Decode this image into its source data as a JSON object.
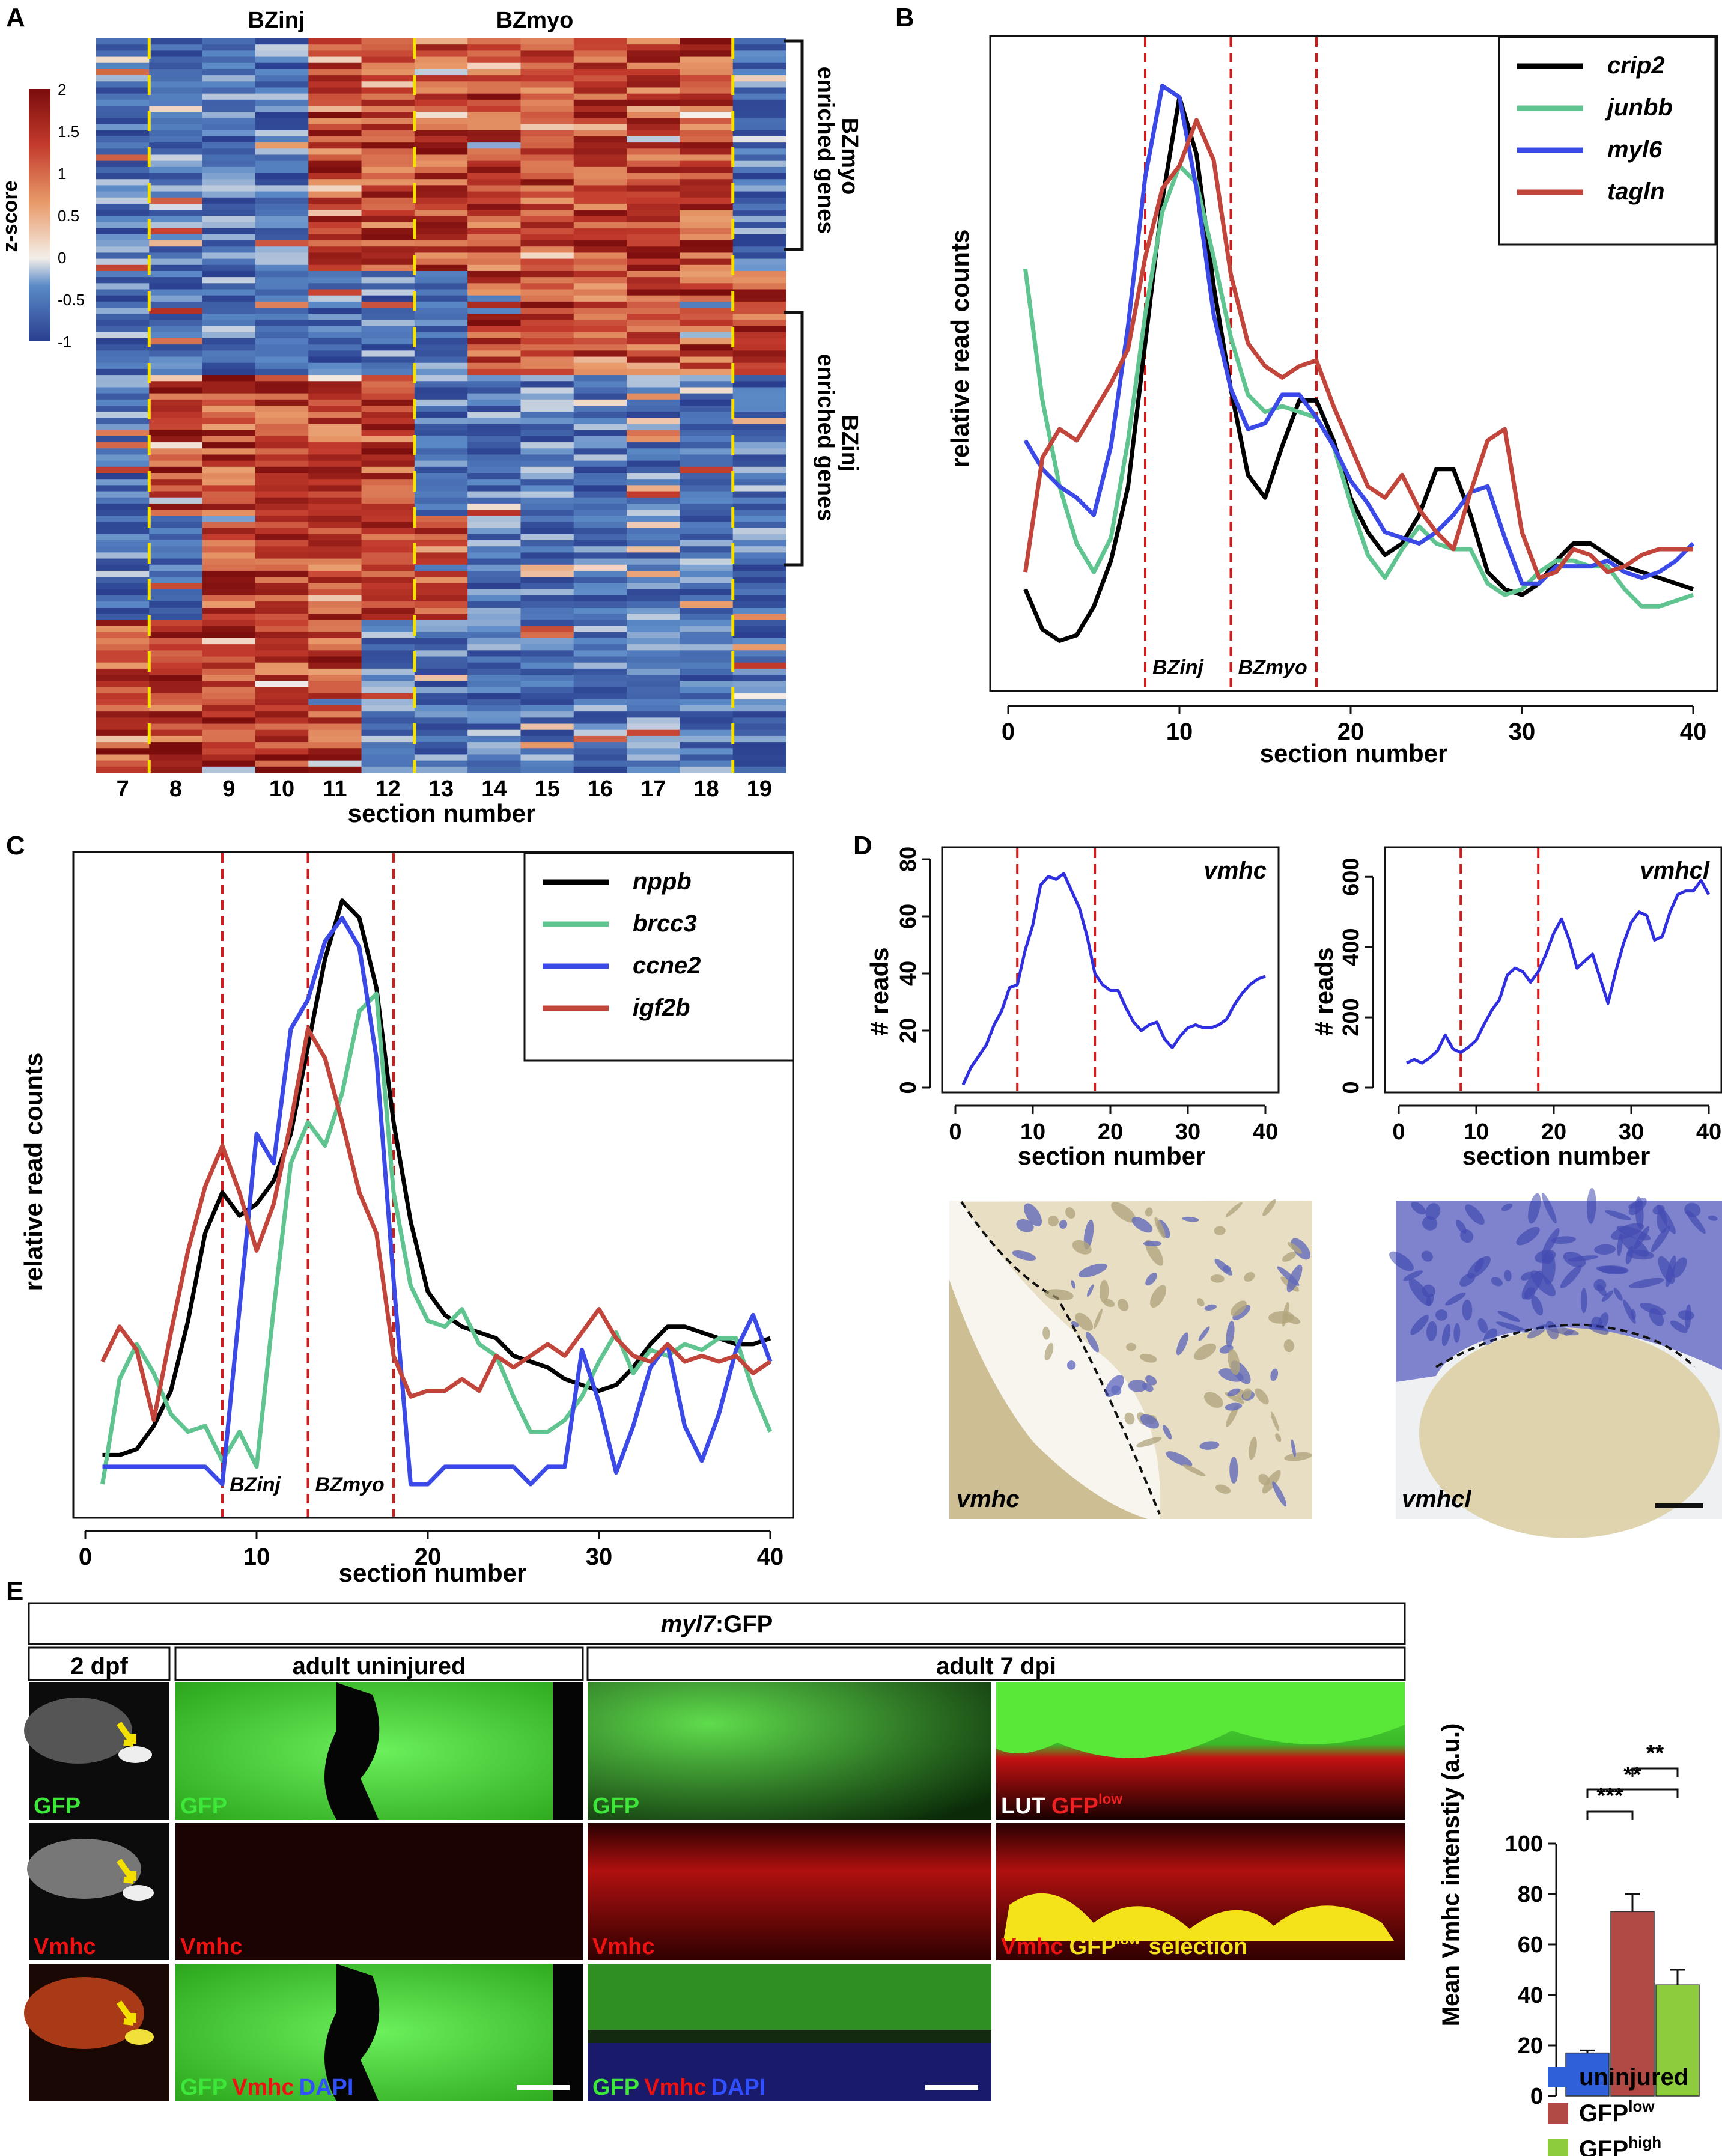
{
  "panelA": {
    "letter": "A",
    "header_left": "BZinj",
    "header_right": "BZmyo",
    "colorbar_label": "z-score",
    "colorbar_ticks": [
      "2",
      "1.5",
      "1",
      "0.5",
      "0",
      "-0.5",
      "-1"
    ],
    "bracket_top": [
      "BZmyo",
      "enriched genes"
    ],
    "bracket_bottom": [
      "BZinj",
      "enriched genes"
    ],
    "section_numbers": [
      "7",
      "8",
      "9",
      "10",
      "11",
      "12",
      "13",
      "14",
      "15",
      "16",
      "17",
      "18",
      "19"
    ],
    "xlabel": "section number"
  },
  "panelB": {
    "letter": "B",
    "ylabel": "relative read counts",
    "xlabel": "section number",
    "xticks": [
      "0",
      "10",
      "20",
      "30",
      "40"
    ],
    "zone_labels": [
      "BZinj",
      "BZmyo"
    ]
  },
  "panelC": {
    "letter": "C",
    "ylabel": "relative read counts",
    "xlabel": "section number",
    "xticks": [
      "0",
      "10",
      "20",
      "30",
      "40"
    ],
    "zone_labels": [
      "BZinj",
      "BZmyo"
    ]
  },
  "panelD": {
    "letter": "D",
    "ylabel": "# reads",
    "xlabel": "section number",
    "xticks": [
      "0",
      "10",
      "20",
      "30",
      "40"
    ],
    "left_title": "vmhc",
    "left_yticks": [
      "0",
      "20",
      "40",
      "60",
      "80"
    ],
    "right_title": "vmhcl",
    "right_yticks": [
      "0",
      "200",
      "400",
      "600"
    ],
    "image_left_label": "vmhc",
    "image_right_label": "vmhcl"
  },
  "panelE": {
    "letter": "E",
    "title_gene": "myl7",
    "title_suffix": ":GFP",
    "col_2dpf": "2 dpf",
    "col_uninjured": "adult  uninjured",
    "col_7dpi": "adult  7 dpi",
    "lab_gfp": "GFP",
    "lab_vmhc": "Vmhc",
    "lab_dapi": "DAPI",
    "lab_lut": "LUT",
    "lab_gfp_low": "GFP",
    "sup_low": "low",
    "lab_selection": "selection",
    "bar_ylabel": "Mean Vmhc intenstiy (a.u.)",
    "bar_yticks": [
      "0",
      "20",
      "40",
      "60",
      "80",
      "100"
    ],
    "sig": [
      "***",
      "**",
      "**"
    ],
    "legend": [
      {
        "base": "uninjured",
        "sup": ""
      },
      {
        "base": "GFP",
        "sup": "low"
      },
      {
        "base": "GFP",
        "sup": "high"
      }
    ]
  },
  "chart_data": [
    {
      "type": "heatmap",
      "panel": "A",
      "x": [
        7,
        8,
        9,
        10,
        11,
        12,
        13,
        14,
        15,
        16,
        17,
        18,
        19
      ],
      "xlabel": "section number",
      "color_scale": {
        "min": -1,
        "max": 2,
        "low_color": "#2a3f8f",
        "mid_color": "#f4efe9",
        "high_color": "#7a0c0c"
      }
    },
    {
      "type": "line",
      "panel": "B",
      "xlabel": "section number",
      "ylabel": "relative read counts",
      "xlim": [
        0,
        40
      ],
      "vlines": [
        8,
        13,
        18
      ],
      "series": [
        {
          "name": "crip2",
          "color": "#000000",
          "x": [
            1,
            2,
            3,
            4,
            5,
            6,
            7,
            8,
            9,
            10,
            11,
            12,
            13,
            14,
            15,
            16,
            17,
            18,
            19,
            20,
            21,
            22,
            23,
            24,
            25,
            26,
            27,
            28,
            29,
            30,
            31,
            32,
            33,
            34,
            35,
            36,
            37,
            38,
            39,
            40
          ],
          "values": [
            0.12,
            0.05,
            0.03,
            0.04,
            0.09,
            0.17,
            0.3,
            0.55,
            0.8,
            0.98,
            0.88,
            0.65,
            0.47,
            0.32,
            0.28,
            0.37,
            0.45,
            0.45,
            0.38,
            0.28,
            0.22,
            0.18,
            0.2,
            0.25,
            0.33,
            0.33,
            0.25,
            0.15,
            0.12,
            0.11,
            0.13,
            0.17,
            0.2,
            0.2,
            0.18,
            0.16,
            0.15,
            0.14,
            0.13,
            0.12
          ]
        },
        {
          "name": "junbb",
          "color": "#5fc48f",
          "x": [
            1,
            2,
            3,
            4,
            5,
            6,
            7,
            8,
            9,
            10,
            11,
            12,
            13,
            14,
            15,
            16,
            17,
            18,
            19,
            20,
            21,
            22,
            23,
            24,
            25,
            26,
            27,
            28,
            29,
            30,
            31,
            32,
            33,
            34,
            35,
            36,
            37,
            38,
            39,
            40
          ],
          "values": [
            0.68,
            0.45,
            0.3,
            0.2,
            0.15,
            0.21,
            0.38,
            0.6,
            0.78,
            0.86,
            0.83,
            0.7,
            0.56,
            0.46,
            0.43,
            0.44,
            0.43,
            0.42,
            0.37,
            0.27,
            0.18,
            0.14,
            0.19,
            0.23,
            0.2,
            0.19,
            0.19,
            0.13,
            0.11,
            0.12,
            0.15,
            0.17,
            0.17,
            0.16,
            0.16,
            0.12,
            0.09,
            0.09,
            0.1,
            0.11
          ]
        },
        {
          "name": "myl6",
          "color": "#3b49e6",
          "x": [
            1,
            2,
            3,
            4,
            5,
            6,
            7,
            8,
            9,
            10,
            11,
            12,
            13,
            14,
            15,
            16,
            17,
            18,
            19,
            20,
            21,
            22,
            23,
            24,
            25,
            26,
            27,
            28,
            29,
            30,
            31,
            32,
            33,
            34,
            35,
            36,
            37,
            38,
            39,
            40
          ],
          "values": [
            0.38,
            0.33,
            0.3,
            0.28,
            0.25,
            0.37,
            0.58,
            0.84,
            1.0,
            0.98,
            0.82,
            0.6,
            0.47,
            0.4,
            0.41,
            0.46,
            0.46,
            0.42,
            0.37,
            0.31,
            0.27,
            0.22,
            0.21,
            0.2,
            0.22,
            0.25,
            0.29,
            0.3,
            0.21,
            0.13,
            0.13,
            0.16,
            0.16,
            0.16,
            0.17,
            0.15,
            0.14,
            0.15,
            0.17,
            0.2
          ]
        },
        {
          "name": "tagln",
          "color": "#c1453a",
          "x": [
            1,
            2,
            3,
            4,
            5,
            6,
            7,
            8,
            9,
            10,
            11,
            12,
            13,
            14,
            15,
            16,
            17,
            18,
            19,
            20,
            21,
            22,
            23,
            24,
            25,
            26,
            27,
            28,
            29,
            30,
            31,
            32,
            33,
            34,
            35,
            36,
            37,
            38,
            39,
            40
          ],
          "values": [
            0.15,
            0.35,
            0.4,
            0.38,
            0.43,
            0.48,
            0.54,
            0.7,
            0.82,
            0.86,
            0.94,
            0.87,
            0.67,
            0.55,
            0.51,
            0.49,
            0.51,
            0.52,
            0.44,
            0.37,
            0.3,
            0.28,
            0.32,
            0.26,
            0.22,
            0.19,
            0.29,
            0.38,
            0.4,
            0.22,
            0.14,
            0.15,
            0.19,
            0.18,
            0.15,
            0.16,
            0.18,
            0.19,
            0.19,
            0.19
          ]
        }
      ]
    },
    {
      "type": "line",
      "panel": "C",
      "xlabel": "section number",
      "ylabel": "relative read counts",
      "xlim": [
        0,
        40
      ],
      "vlines": [
        8,
        13,
        18
      ],
      "series": [
        {
          "name": "nppb",
          "color": "#000000",
          "x": [
            1,
            2,
            3,
            4,
            5,
            6,
            7,
            8,
            9,
            10,
            11,
            12,
            13,
            14,
            15,
            16,
            17,
            18,
            19,
            20,
            21,
            22,
            23,
            24,
            25,
            26,
            27,
            28,
            29,
            30,
            31,
            32,
            33,
            34,
            35,
            36,
            37,
            38,
            39,
            40
          ],
          "values": [
            0.05,
            0.05,
            0.06,
            0.1,
            0.16,
            0.28,
            0.43,
            0.5,
            0.46,
            0.48,
            0.52,
            0.6,
            0.75,
            0.9,
            1.0,
            0.97,
            0.85,
            0.62,
            0.45,
            0.33,
            0.29,
            0.27,
            0.26,
            0.25,
            0.22,
            0.21,
            0.2,
            0.18,
            0.17,
            0.16,
            0.17,
            0.2,
            0.24,
            0.27,
            0.27,
            0.26,
            0.25,
            0.24,
            0.24,
            0.25
          ]
        },
        {
          "name": "brcc3",
          "color": "#5fc48f",
          "x": [
            1,
            2,
            3,
            4,
            5,
            6,
            7,
            8,
            9,
            10,
            11,
            12,
            13,
            14,
            15,
            16,
            17,
            18,
            19,
            20,
            21,
            22,
            23,
            24,
            25,
            26,
            27,
            28,
            29,
            30,
            31,
            32,
            33,
            34,
            35,
            36,
            37,
            38,
            39,
            40
          ],
          "values": [
            0.0,
            0.18,
            0.24,
            0.19,
            0.12,
            0.09,
            0.1,
            0.04,
            0.09,
            0.03,
            0.3,
            0.55,
            0.62,
            0.58,
            0.67,
            0.81,
            0.84,
            0.5,
            0.34,
            0.28,
            0.27,
            0.3,
            0.24,
            0.22,
            0.15,
            0.09,
            0.09,
            0.11,
            0.15,
            0.21,
            0.26,
            0.19,
            0.23,
            0.22,
            0.24,
            0.23,
            0.25,
            0.25,
            0.16,
            0.09
          ]
        },
        {
          "name": "ccne2",
          "color": "#3b49e6",
          "x": [
            1,
            2,
            3,
            4,
            5,
            6,
            7,
            8,
            9,
            10,
            11,
            12,
            13,
            14,
            15,
            16,
            17,
            18,
            19,
            20,
            21,
            22,
            23,
            24,
            25,
            26,
            27,
            28,
            29,
            30,
            31,
            32,
            33,
            34,
            35,
            36,
            37,
            38,
            39,
            40
          ],
          "values": [
            0.03,
            0.03,
            0.03,
            0.03,
            0.03,
            0.03,
            0.03,
            0.0,
            0.3,
            0.6,
            0.55,
            0.78,
            0.83,
            0.93,
            0.97,
            0.92,
            0.73,
            0.35,
            0.0,
            0.0,
            0.03,
            0.03,
            0.03,
            0.03,
            0.03,
            0.0,
            0.03,
            0.03,
            0.23,
            0.14,
            0.02,
            0.1,
            0.2,
            0.24,
            0.1,
            0.04,
            0.12,
            0.23,
            0.29,
            0.21
          ]
        },
        {
          "name": "igf2b",
          "color": "#c1453a",
          "x": [
            1,
            2,
            3,
            4,
            5,
            6,
            7,
            8,
            9,
            10,
            11,
            12,
            13,
            14,
            15,
            16,
            17,
            18,
            19,
            20,
            21,
            22,
            23,
            24,
            25,
            26,
            27,
            28,
            29,
            30,
            31,
            32,
            33,
            34,
            35,
            36,
            37,
            38,
            39,
            40
          ],
          "values": [
            0.21,
            0.27,
            0.23,
            0.11,
            0.26,
            0.4,
            0.51,
            0.58,
            0.5,
            0.4,
            0.48,
            0.62,
            0.78,
            0.73,
            0.62,
            0.5,
            0.43,
            0.22,
            0.15,
            0.16,
            0.16,
            0.18,
            0.16,
            0.22,
            0.2,
            0.22,
            0.24,
            0.22,
            0.26,
            0.3,
            0.25,
            0.22,
            0.21,
            0.24,
            0.21,
            0.22,
            0.21,
            0.22,
            0.19,
            0.21
          ]
        }
      ]
    },
    {
      "type": "line",
      "panel": "D-vmhc",
      "xlabel": "section number",
      "ylabel": "# reads",
      "xlim": [
        0,
        40
      ],
      "ylim": [
        0,
        80
      ],
      "vlines": [
        8,
        18
      ],
      "series": [
        {
          "name": "vmhc",
          "color": "#2f2fe0",
          "x": [
            1,
            2,
            3,
            4,
            5,
            6,
            7,
            8,
            9,
            10,
            11,
            12,
            13,
            14,
            15,
            16,
            17,
            18,
            19,
            20,
            21,
            22,
            23,
            24,
            25,
            26,
            27,
            28,
            29,
            30,
            31,
            32,
            33,
            34,
            35,
            36,
            37,
            38,
            39,
            40
          ],
          "values": [
            1,
            7,
            11,
            15,
            22,
            27,
            35,
            36,
            48,
            57,
            71,
            74,
            73,
            75,
            69,
            63,
            53,
            40,
            36,
            34,
            34,
            28,
            23,
            20,
            22,
            23,
            17,
            14,
            18,
            21,
            22,
            21,
            21,
            22,
            24,
            29,
            33,
            36,
            38,
            39
          ]
        }
      ]
    },
    {
      "type": "line",
      "panel": "D-vmhcl",
      "xlabel": "section number",
      "ylabel": "# reads",
      "xlim": [
        0,
        40
      ],
      "ylim": [
        0,
        650
      ],
      "vlines": [
        8,
        18
      ],
      "series": [
        {
          "name": "vmhcl",
          "color": "#2f2fe0",
          "x": [
            1,
            2,
            3,
            4,
            5,
            6,
            7,
            8,
            9,
            10,
            11,
            12,
            13,
            14,
            15,
            16,
            17,
            18,
            19,
            20,
            21,
            22,
            23,
            24,
            25,
            26,
            27,
            28,
            29,
            30,
            31,
            32,
            33,
            34,
            35,
            36,
            37,
            38,
            39,
            40
          ],
          "values": [
            70,
            80,
            70,
            85,
            105,
            150,
            110,
            100,
            115,
            135,
            180,
            220,
            250,
            320,
            340,
            330,
            300,
            330,
            380,
            440,
            480,
            420,
            340,
            360,
            380,
            310,
            240,
            330,
            410,
            470,
            500,
            490,
            420,
            430,
            500,
            550,
            560,
            560,
            590,
            550
          ]
        }
      ]
    },
    {
      "type": "bar",
      "panel": "E",
      "categories": [
        "uninjured",
        "GFPlow",
        "GFPhigh"
      ],
      "values": [
        17,
        73,
        44
      ],
      "errors": [
        1,
        7,
        6
      ],
      "colors": [
        "#2f5fd9",
        "#b14a44",
        "#8dcc3c"
      ],
      "ylabel": "Mean Vmhc intenstiy (a.u.)",
      "ylim": [
        0,
        100
      ],
      "significance": [
        {
          "pair": [
            "uninjured",
            "GFPlow"
          ],
          "label": "***"
        },
        {
          "pair": [
            "uninjured",
            "GFPhigh"
          ],
          "label": "**"
        },
        {
          "pair": [
            "GFPlow",
            "GFPhigh"
          ],
          "label": "**"
        }
      ]
    }
  ]
}
